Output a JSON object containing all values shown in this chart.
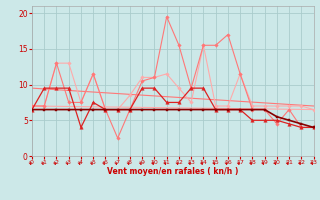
{
  "background_color": "#cce8e8",
  "grid_color": "#aacccc",
  "xlabel": "Vent moyen/en rafales ( kn/h )",
  "xlabel_color": "#cc0000",
  "tick_color": "#cc0000",
  "ylim": [
    0,
    21
  ],
  "xlim": [
    0,
    23
  ],
  "yticks": [
    0,
    5,
    10,
    15,
    20
  ],
  "xticks": [
    0,
    1,
    2,
    3,
    4,
    5,
    6,
    7,
    8,
    9,
    10,
    11,
    12,
    13,
    14,
    15,
    16,
    17,
    18,
    19,
    20,
    21,
    22,
    23
  ],
  "series": [
    {
      "x": [
        0,
        1,
        2,
        3,
        4,
        5,
        6,
        7,
        8,
        9,
        10,
        11,
        12,
        13,
        14,
        15,
        16,
        17,
        18,
        19,
        20,
        21,
        22,
        23
      ],
      "y": [
        7.0,
        7.0,
        13.0,
        13.0,
        7.5,
        11.5,
        6.5,
        6.5,
        8.5,
        11.0,
        11.0,
        11.5,
        9.5,
        7.5,
        15.5,
        7.0,
        7.0,
        11.5,
        7.0,
        7.0,
        7.0,
        7.0,
        7.0,
        6.5
      ],
      "color": "#ffaaaa",
      "marker": "D",
      "markersize": 1.8,
      "linewidth": 0.8
    },
    {
      "x": [
        0,
        1,
        2,
        3,
        4,
        5,
        6,
        7,
        8,
        9,
        10,
        11,
        12,
        13,
        14,
        15,
        16,
        17,
        18,
        19,
        20,
        21,
        22,
        23
      ],
      "y": [
        7.0,
        7.0,
        13.0,
        7.5,
        7.5,
        11.5,
        6.5,
        2.5,
        6.5,
        10.5,
        11.0,
        19.5,
        15.5,
        9.5,
        15.5,
        15.5,
        17.0,
        11.5,
        6.5,
        6.5,
        4.5,
        6.5,
        4.0,
        4.0
      ],
      "color": "#ff7777",
      "marker": "D",
      "markersize": 1.8,
      "linewidth": 0.8
    },
    {
      "x": [
        0,
        1,
        2,
        3,
        4,
        5,
        6,
        7,
        8,
        9,
        10,
        11,
        12,
        13,
        14,
        15,
        16,
        17,
        18,
        19,
        20,
        21,
        22,
        23
      ],
      "y": [
        6.5,
        9.5,
        9.5,
        9.5,
        4.0,
        7.5,
        6.5,
        6.5,
        6.5,
        9.5,
        9.5,
        7.5,
        7.5,
        9.5,
        9.5,
        6.5,
        6.5,
        6.5,
        5.0,
        5.0,
        5.0,
        4.5,
        4.0,
        4.0
      ],
      "color": "#dd2222",
      "marker": "^",
      "markersize": 2.5,
      "linewidth": 0.9
    },
    {
      "x": [
        0,
        1,
        2,
        3,
        4,
        5,
        6,
        7,
        8,
        9,
        10,
        11,
        12,
        13,
        14,
        15,
        16,
        17,
        18,
        19,
        20,
        21,
        22,
        23
      ],
      "y": [
        6.5,
        6.5,
        6.5,
        6.5,
        6.5,
        6.5,
        6.5,
        6.5,
        6.5,
        6.5,
        6.5,
        6.5,
        6.5,
        6.5,
        6.5,
        6.5,
        6.5,
        6.5,
        6.5,
        6.5,
        5.5,
        5.0,
        4.5,
        4.0
      ],
      "color": "#880000",
      "marker": "s",
      "markersize": 1.8,
      "linewidth": 1.2
    },
    {
      "x": [
        0,
        23
      ],
      "y": [
        7.0,
        6.5
      ],
      "color": "#ffaaaa",
      "marker": null,
      "linewidth": 0.8
    },
    {
      "x": [
        0,
        23
      ],
      "y": [
        9.5,
        7.0
      ],
      "color": "#ff7777",
      "marker": null,
      "linewidth": 0.8
    }
  ],
  "wind_arrow_color": "#cc0000",
  "wind_arrows_x": [
    0,
    1,
    2,
    3,
    4,
    5,
    6,
    7,
    8,
    9,
    10,
    11,
    12,
    13,
    14,
    15,
    16,
    17,
    18,
    19,
    20,
    21,
    22,
    23
  ]
}
